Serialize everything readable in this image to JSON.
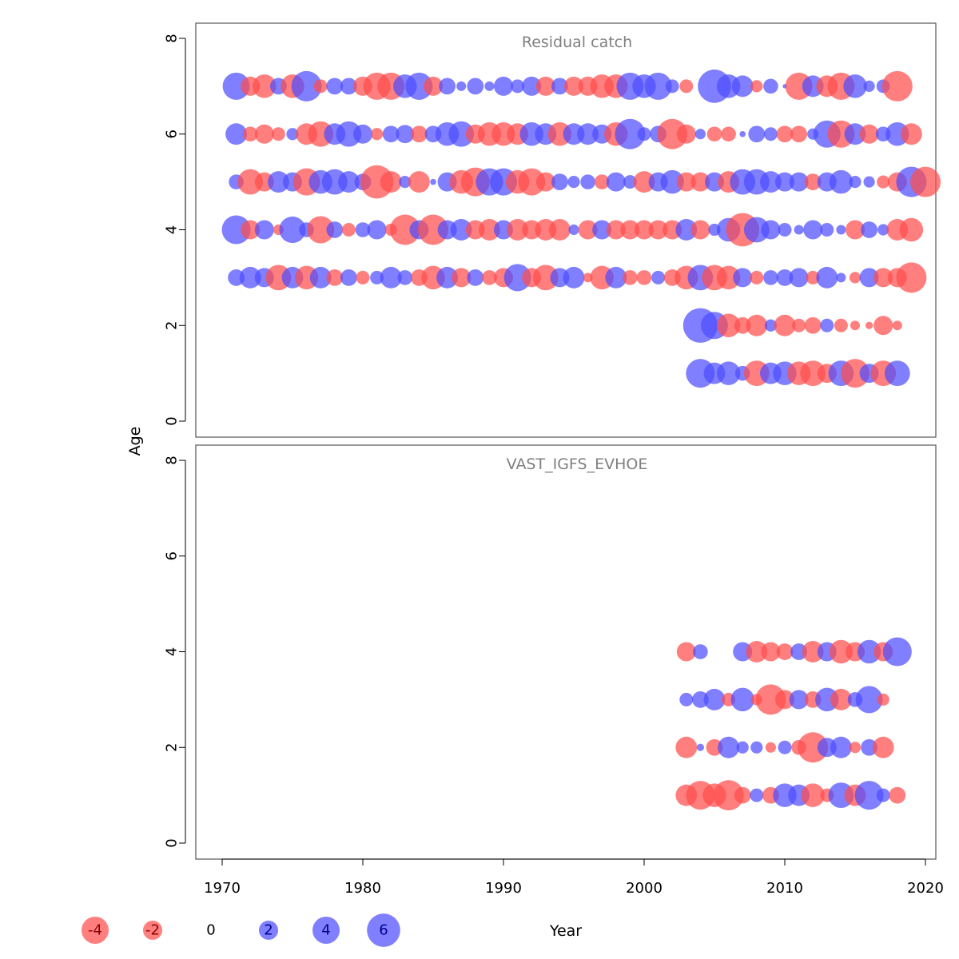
{
  "chart_data": {
    "type": "scatter",
    "subtype": "bubble residual plot",
    "xlabel": "Year",
    "ylabel": "Age",
    "xlim": [
      1968,
      2020
    ],
    "ylim": [
      0,
      8
    ],
    "x_ticks": [
      1970,
      1980,
      1990,
      2000,
      2010,
      2020
    ],
    "y_ticks": [
      0,
      2,
      4,
      6,
      8
    ],
    "colors": {
      "negative": "#ff4d4d",
      "positive": "#4d4dff"
    },
    "legend": {
      "placement": "bottom",
      "items": [
        {
          "value": -4,
          "label": "-4"
        },
        {
          "value": -2,
          "label": "-2"
        },
        {
          "value": 0,
          "label": "0"
        },
        {
          "value": 2,
          "label": "2"
        },
        {
          "value": 4,
          "label": "4"
        },
        {
          "value": 6,
          "label": "6"
        }
      ]
    },
    "panels": [
      {
        "title": "Residual catch",
        "rows": [
          {
            "age": 7,
            "start_year": 1971,
            "residuals": [
              4,
              -2,
              -3,
              1.5,
              -3,
              5,
              -1,
              1.5,
              1.5,
              -2,
              -4,
              -4,
              3,
              4,
              -2,
              1.5,
              0.5,
              1.5,
              0.5,
              2,
              1,
              2,
              -2,
              1.5,
              -2,
              -2,
              -3,
              -3,
              4,
              3,
              4,
              1,
              -1,
              0,
              6,
              3,
              2.5,
              -0.8,
              1.2,
              0.1,
              -4,
              2.5,
              -2.5,
              -4,
              3,
              0.7,
              1,
              -5
            ]
          },
          {
            "age": 6,
            "start_year": 1971,
            "residuals": [
              2.5,
              -1.2,
              -2,
              -1,
              0.8,
              -2.5,
              -3.5,
              2.5,
              3.5,
              2,
              -0.8,
              1.5,
              1.8,
              -1.5,
              1.5,
              3,
              3.5,
              -2,
              -3,
              -3,
              -2.5,
              3,
              2.5,
              -3,
              2.5,
              2.5,
              2,
              -3,
              5,
              1,
              1.5,
              -5,
              -2,
              0.6,
              -1.2,
              -1.2,
              0.2,
              1.5,
              1,
              -1.5,
              -1.5,
              0.7,
              4,
              -4,
              2.5,
              -2,
              1.2,
              3,
              -2.5
            ]
          },
          {
            "age": 5,
            "start_year": 1971,
            "residuals": [
              1.2,
              -3.5,
              -2,
              2.5,
              2,
              -4,
              3,
              3.5,
              2.5,
              1.5,
              -6,
              -2.5,
              0.8,
              -2.5,
              0.2,
              2,
              -3,
              -4.5,
              4,
              4,
              -3,
              -4,
              -2,
              1.5,
              0.8,
              1.2,
              -1.2,
              2,
              1,
              -2.5,
              2,
              3,
              -2,
              -2,
              2,
              -2.5,
              3.5,
              3.5,
              2.5,
              2,
              2,
              -1.5,
              2,
              3,
              0.8,
              0.7,
              -0.9,
              -2,
              5,
              -5
            ]
          },
          {
            "age": 4,
            "start_year": 1971,
            "residuals": [
              4.5,
              -2,
              2,
              -0.6,
              3.8,
              1.2,
              -4,
              1.5,
              -1,
              1.2,
              2,
              -0.8,
              -5,
              2,
              -5,
              2,
              2.5,
              -2,
              -2.5,
              2,
              -2.5,
              -2,
              -2.5,
              -2.5,
              0.6,
              -2,
              2,
              -2,
              -2,
              -2,
              -2,
              -2,
              2.5,
              -2,
              0.8,
              3,
              -6,
              3.5,
              2,
              1,
              0.5,
              2,
              1,
              0.5,
              -2,
              1.5,
              0.7,
              -2.5,
              -3
            ]
          },
          {
            "age": 3,
            "start_year": 1971,
            "residuals": [
              1.5,
              2.5,
              2,
              -3.5,
              2.5,
              -3,
              2.5,
              -1.5,
              1.5,
              -1,
              1,
              2.5,
              1.2,
              -1.5,
              -3,
              2.5,
              -2,
              1.5,
              -1.2,
              -2,
              4,
              -2,
              -3.5,
              2,
              2.5,
              -0.5,
              -3,
              2.5,
              -1.2,
              -1.2,
              1,
              -1.5,
              -3,
              3.5,
              -3.5,
              -3,
              2,
              -1,
              1.2,
              1.5,
              2,
              -1,
              2.5,
              0.5,
              -0.7,
              2,
              -2,
              -2,
              -5
            ]
          },
          {
            "age": 2,
            "start_year": 2004,
            "residuals": [
              6.5,
              4,
              -3,
              -1.5,
              -2.5,
              0.8,
              -2.5,
              -1,
              -1.5,
              1,
              -1,
              -0.5,
              -0.3,
              -2,
              -0.5
            ]
          },
          {
            "age": 1,
            "start_year": 2004,
            "residuals": [
              4.5,
              2.5,
              3,
              1.2,
              -3.5,
              2.5,
              3,
              -3,
              -3.5,
              -2,
              3.5,
              -4.5,
              2,
              -3.5,
              3.5
            ]
          }
        ]
      },
      {
        "title": "VAST_IGFS_EVHOE",
        "rows": [
          {
            "age": 4,
            "start_year": 2003,
            "residuals": [
              -2,
              1.2,
              0,
              0,
              2,
              -2.5,
              -2,
              -1.5,
              1.5,
              -2.5,
              2,
              -3,
              -2,
              3,
              -2,
              4.5
            ]
          },
          {
            "age": 3,
            "start_year": 2003,
            "residuals": [
              1,
              1.5,
              2.5,
              -1,
              3,
              -0.7,
              -5,
              -2,
              2,
              -1.5,
              3,
              -2.5,
              1.2,
              4,
              -0.8
            ]
          },
          {
            "age": 2,
            "start_year": 2003,
            "residuals": [
              -2.5,
              0.3,
              -1.5,
              2.5,
              0.8,
              0.8,
              -0.6,
              1,
              -1.2,
              -5,
              2,
              2.5,
              -0.7,
              1.5,
              -2.5
            ]
          },
          {
            "age": 1,
            "start_year": 2003,
            "residuals": [
              -2.5,
              -4.5,
              -3,
              -5,
              -1.5,
              1,
              -1.5,
              3,
              2.5,
              -3,
              -1,
              3.5,
              -2.5,
              4.5,
              1,
              -1.5
            ]
          }
        ]
      }
    ]
  }
}
